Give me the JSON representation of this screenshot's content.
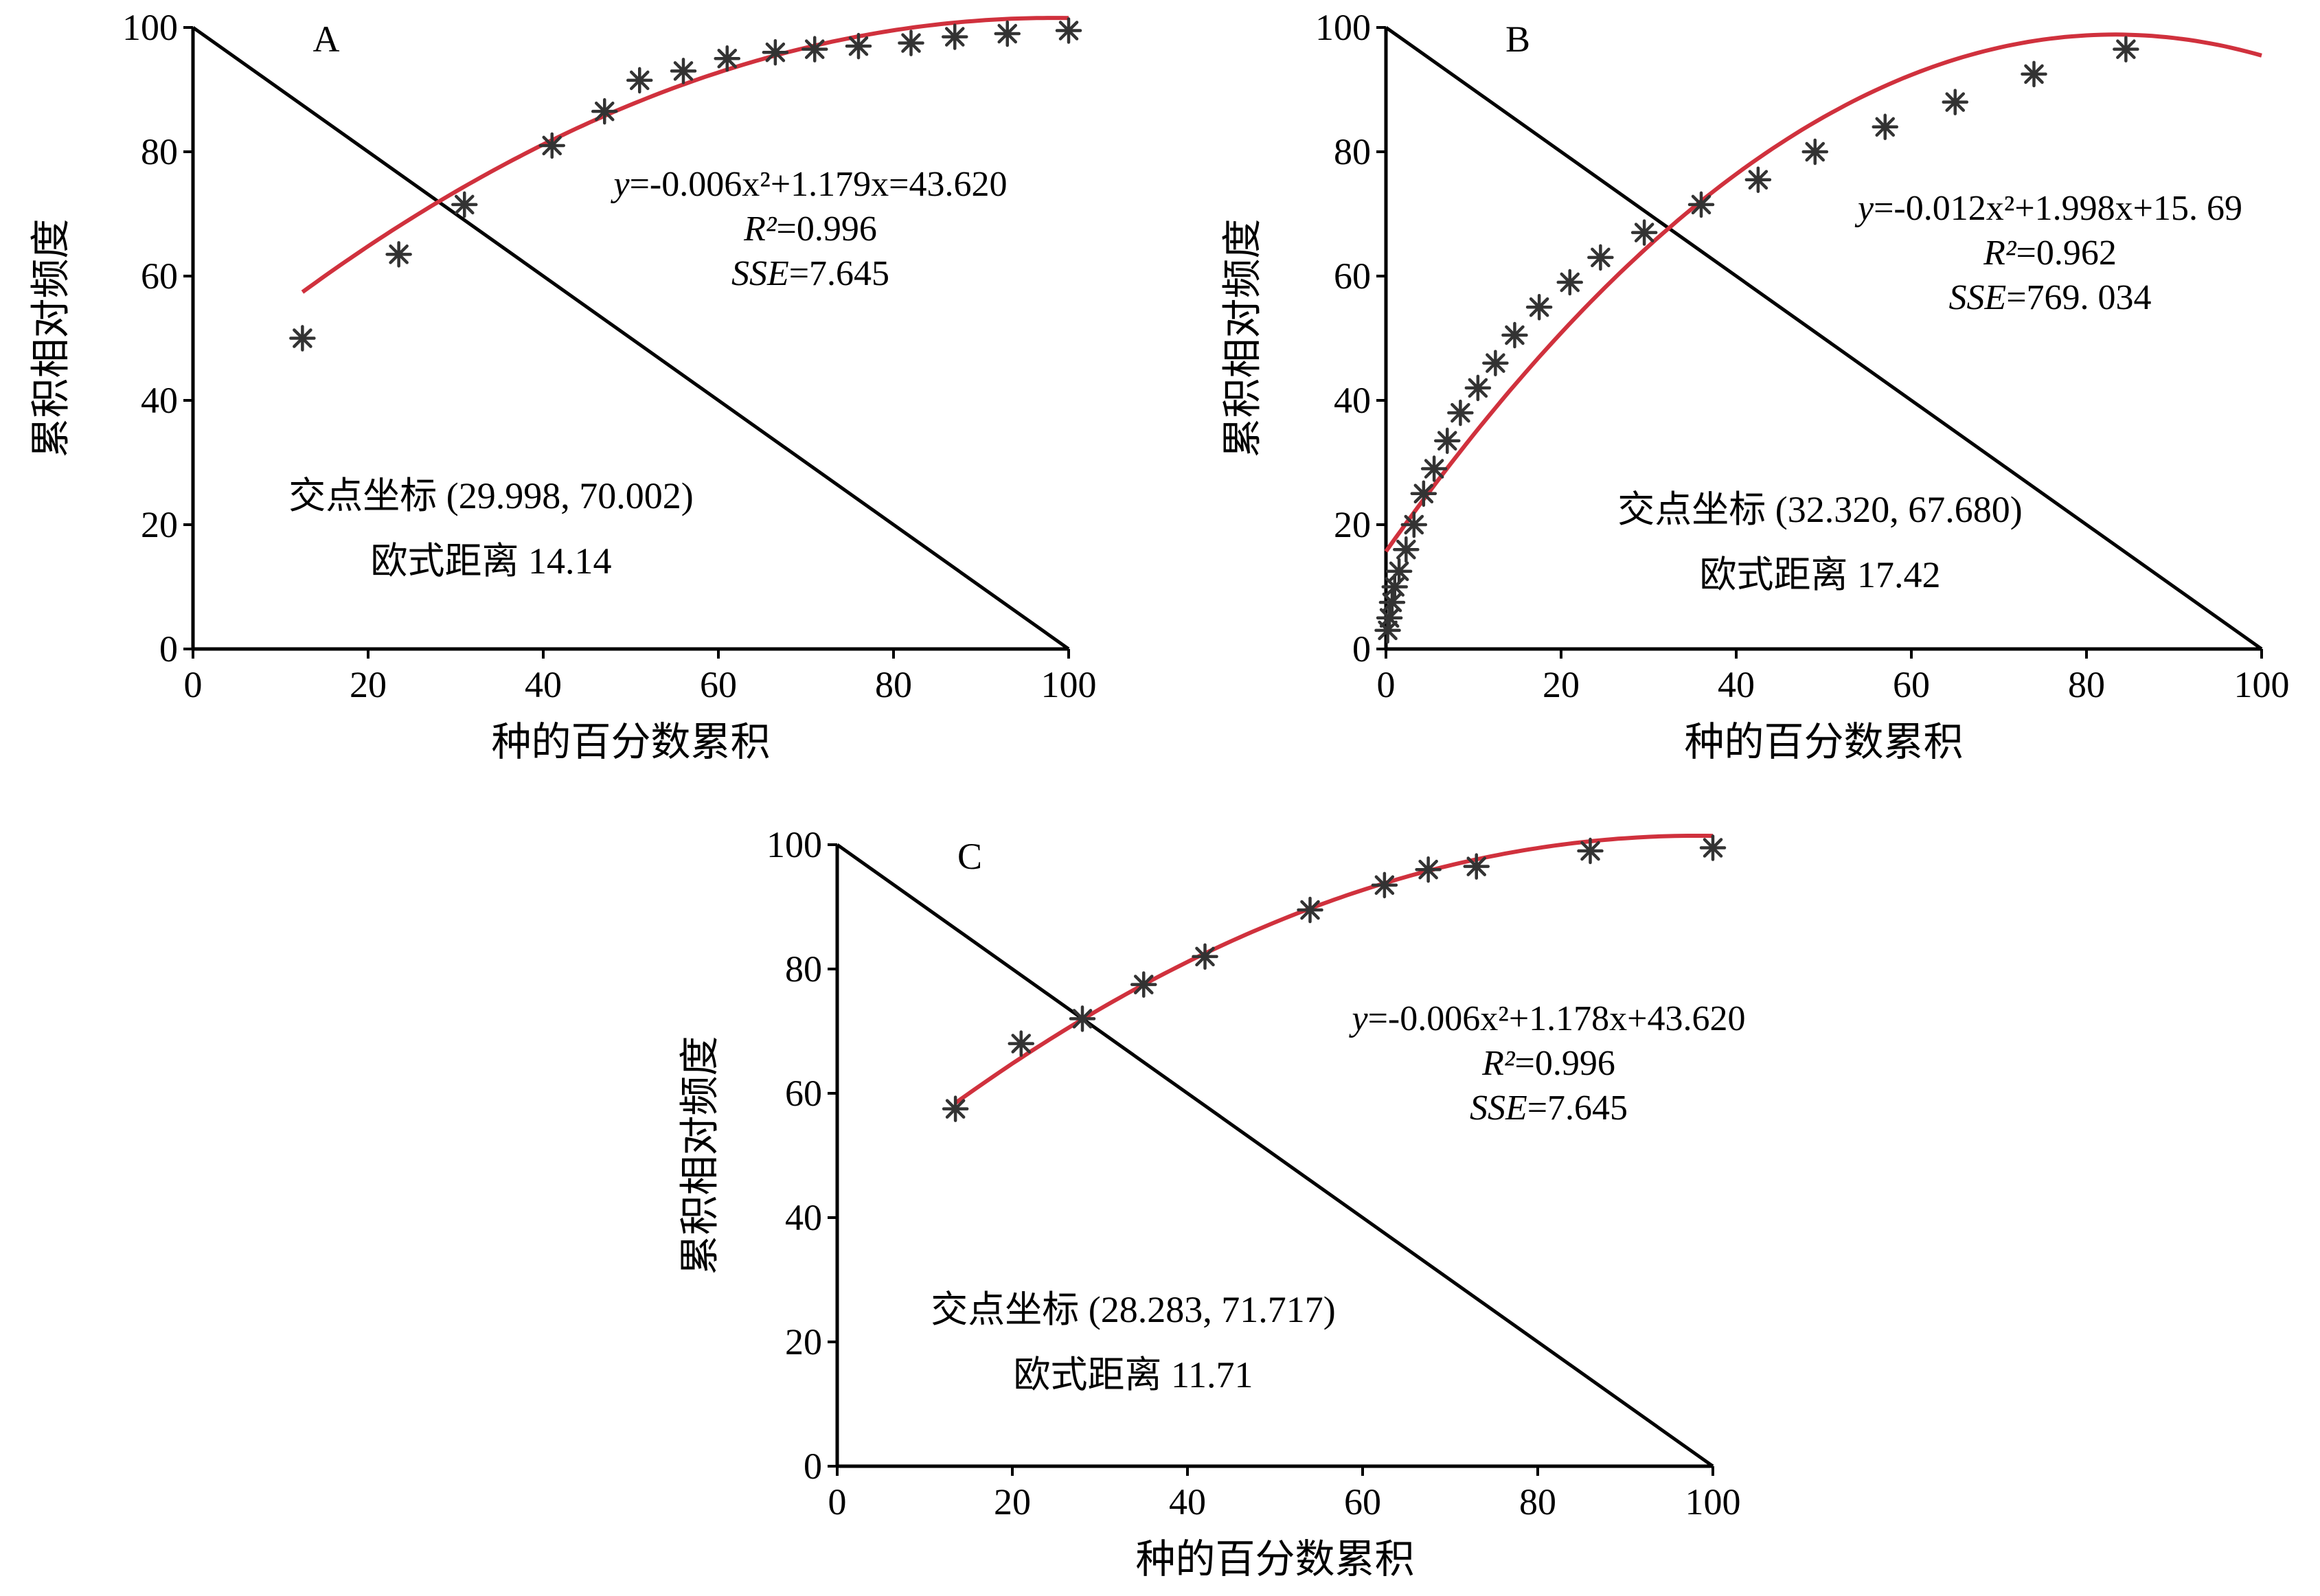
{
  "chart_data": [
    {
      "type": "scatter",
      "panel_label": "A",
      "xlabel": "种的百分数累积",
      "ylabel": "累积相对频度",
      "xlim": [
        0,
        100
      ],
      "ylim": [
        0,
        100
      ],
      "xticks": [
        0,
        20,
        40,
        60,
        80,
        100
      ],
      "yticks": [
        0,
        20,
        40,
        60,
        80,
        100
      ],
      "legend": "none",
      "grid": false,
      "series": [
        {
          "marker": "asterisk",
          "x": [
            12.5,
            23.5,
            31,
            41,
            47,
            51,
            56,
            61,
            66.5,
            71,
            76,
            82,
            87,
            93,
            100
          ],
          "y": [
            50,
            63.5,
            71.5,
            81,
            86.5,
            91.5,
            93,
            95,
            96,
            96.5,
            97,
            97.5,
            98.5,
            99,
            99.5
          ]
        }
      ],
      "fit": {
        "a": -0.006,
        "b": 1.179,
        "c": 43.62,
        "x_range": [
          12.5,
          100
        ],
        "color": "#d0313d"
      },
      "diagonal": {
        "from": [
          0,
          100
        ],
        "to": [
          100,
          0
        ],
        "color": "#000000"
      },
      "equation": {
        "y_label": "y",
        "eq_text": "=-0.006x²+1.179x=43.620",
        "r2_label": "R²",
        "r2_value": "=0.996",
        "sse_label": "SSE",
        "sse_value": "=7.645"
      },
      "intersection_text": "交点坐标 (29.998, 70.002)",
      "distance_text": "欧式距离 14.14"
    },
    {
      "type": "scatter",
      "panel_label": "B",
      "xlabel": "种的百分数累积",
      "ylabel": "累积相对频度",
      "xlim": [
        0,
        100
      ],
      "ylim": [
        0,
        100
      ],
      "xticks": [
        0,
        20,
        40,
        60,
        80,
        100
      ],
      "yticks": [
        0,
        20,
        40,
        60,
        80,
        100
      ],
      "legend": "none",
      "grid": false,
      "series": [
        {
          "marker": "asterisk",
          "x": [
            0.2,
            0.4,
            0.7,
            1.0,
            1.5,
            2.3,
            3.2,
            4.3,
            5.5,
            7.0,
            8.5,
            10.5,
            12.5,
            14.7,
            17.5,
            21,
            24.5,
            29.5,
            36,
            42.5,
            49,
            57,
            65,
            74,
            84.5
          ],
          "y": [
            3,
            5,
            7.5,
            10,
            12.5,
            16,
            20,
            25,
            29,
            33.5,
            38,
            42,
            46,
            50.5,
            55,
            59,
            63,
            67,
            71.5,
            75.5,
            80,
            84,
            88,
            92.5,
            96.5
          ]
        }
      ],
      "fit": {
        "a": -0.012,
        "b": 1.998,
        "c": 15.69,
        "x_range": [
          0,
          100
        ],
        "color": "#d0313d"
      },
      "diagonal": {
        "from": [
          0,
          100
        ],
        "to": [
          100,
          0
        ],
        "color": "#000000"
      },
      "equation": {
        "y_label": "y",
        "eq_text": "=-0.012x²+1.998x+15. 69",
        "r2_label": "R²",
        "r2_value": "=0.962",
        "sse_label": "SSE",
        "sse_value": "=769. 034"
      },
      "intersection_text": "交点坐标 (32.320, 67.680)",
      "distance_text": "欧式距离 17.42"
    },
    {
      "type": "scatter",
      "panel_label": "C",
      "xlabel": "种的百分数累积",
      "ylabel": "累积相对频度",
      "xlim": [
        0,
        100
      ],
      "ylim": [
        0,
        100
      ],
      "xticks": [
        0,
        20,
        40,
        60,
        80,
        100
      ],
      "yticks": [
        0,
        20,
        40,
        60,
        80,
        100
      ],
      "legend": "none",
      "grid": false,
      "series": [
        {
          "marker": "asterisk",
          "x": [
            13.5,
            21,
            28,
            35,
            42,
            54,
            62.5,
            67.5,
            73,
            86,
            100
          ],
          "y": [
            57.5,
            68,
            72,
            77.5,
            82,
            89.5,
            93.5,
            96,
            96.5,
            99,
            99.5
          ]
        }
      ],
      "fit": {
        "a": -0.006,
        "b": 1.178,
        "c": 43.62,
        "x_range": [
          13.5,
          100
        ],
        "color": "#d0313d"
      },
      "diagonal": {
        "from": [
          0,
          100
        ],
        "to": [
          100,
          0
        ],
        "color": "#000000"
      },
      "equation": {
        "y_label": "y",
        "eq_text": "=-0.006x²+1.178x+43.620",
        "r2_label": "R²",
        "r2_value": "=0.996",
        "sse_label": "SSE",
        "sse_value": "=7.645"
      },
      "intersection_text": "交点坐标 (28.283, 71.717)",
      "distance_text": "欧式距离 11.71"
    }
  ]
}
